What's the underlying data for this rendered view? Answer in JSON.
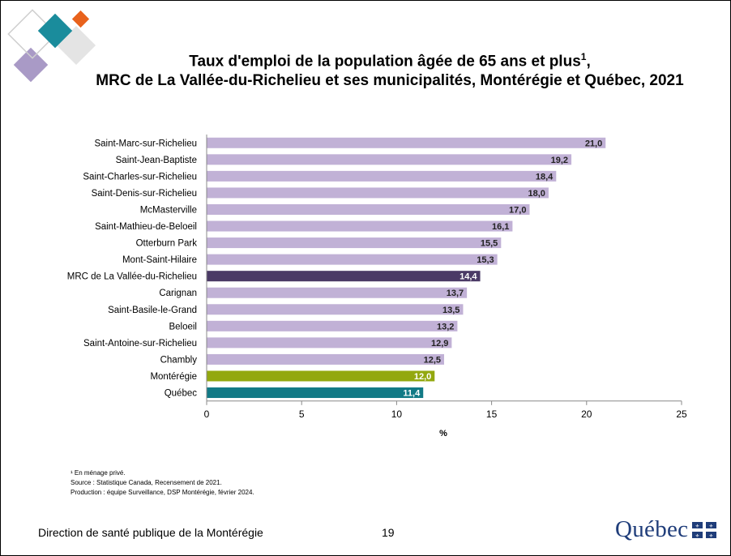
{
  "title_line1": "Taux d'emploi de la population âgée de 65 ans et plus",
  "title_sup": "1",
  "title_line1_end": ",",
  "title_line2": "MRC de La Vallée-du-Richelieu et ses municipalités, Montérégie et Québec, 2021",
  "notes": {
    "note1": "¹ En ménage privé.",
    "note2": "Source : Statistique Canada, Recensement de 2021.",
    "note3": "Production : équipe Surveillance, DSP Montérégie, février 2024."
  },
  "footer": {
    "organization": "Direction de santé publique de la Montérégie",
    "page_number": "19",
    "logo_text": "Québec"
  },
  "colors": {
    "municipality": "#c1b1d6",
    "mrc": "#4b3a66",
    "monteregie": "#93a80f",
    "quebec": "#127a86",
    "logo_teal": "#1a8c9c",
    "logo_orange": "#e8621c",
    "logo_lilac": "#a99ac6",
    "logo_blue": "#1f3d7a"
  },
  "chart_data": {
    "type": "bar",
    "orientation": "horizontal",
    "categories": [
      "Saint-Marc-sur-Richelieu",
      "Saint-Jean-Baptiste",
      "Saint-Charles-sur-Richelieu",
      "Saint-Denis-sur-Richelieu",
      "McMasterville",
      "Saint-Mathieu-de-Beloeil",
      "Otterburn Park",
      "Mont-Saint-Hilaire",
      "MRC de La Vallée-du-Richelieu",
      "Carignan",
      "Saint-Basile-le-Grand",
      "Beloeil",
      "Saint-Antoine-sur-Richelieu",
      "Chambly",
      "Montérégie",
      "Québec"
    ],
    "values": [
      21.0,
      19.2,
      18.4,
      18.0,
      17.0,
      16.1,
      15.5,
      15.3,
      14.4,
      13.7,
      13.5,
      13.2,
      12.9,
      12.5,
      12.0,
      11.4
    ],
    "value_labels": [
      "21,0",
      "19,2",
      "18,4",
      "18,0",
      "17,0",
      "16,1",
      "15,5",
      "15,3",
      "14,4",
      "13,7",
      "13,5",
      "13,2",
      "12,9",
      "12,5",
      "12,0",
      "11,4"
    ],
    "bar_groups": [
      "municipality",
      "municipality",
      "municipality",
      "municipality",
      "municipality",
      "municipality",
      "municipality",
      "municipality",
      "mrc",
      "municipality",
      "municipality",
      "municipality",
      "municipality",
      "municipality",
      "monteregie",
      "quebec"
    ],
    "xlabel": "%",
    "ylabel": "",
    "xlim": [
      0,
      25
    ],
    "xticks": [
      0,
      5,
      10,
      15,
      20,
      25
    ],
    "grid": false,
    "legend": "none"
  }
}
